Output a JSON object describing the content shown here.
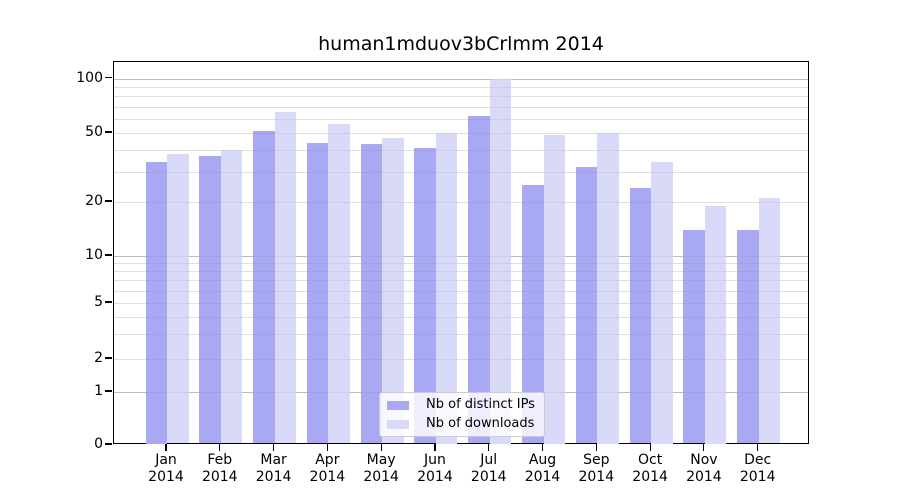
{
  "chart_data": {
    "type": "bar",
    "title": "human1mduov3bCrlmm 2014",
    "x_categories": [
      "Jan",
      "Feb",
      "Mar",
      "Apr",
      "May",
      "Jun",
      "Jul",
      "Aug",
      "Sep",
      "Oct",
      "Nov",
      "Dec"
    ],
    "x_year_label": "2014",
    "series": [
      {
        "name": "Nb of distinct IPs",
        "color": "#a9a9f3",
        "values": [
          34,
          37,
          51,
          44,
          43,
          41,
          62,
          25,
          32,
          24,
          14,
          14
        ]
      },
      {
        "name": "Nb of downloads",
        "color": "#d9d9f8",
        "values": [
          38,
          40,
          65,
          56,
          47,
          50,
          100,
          49,
          50,
          34,
          19,
          21
        ]
      }
    ],
    "yscale": "symlog",
    "yticks": [
      0,
      1,
      2,
      5,
      10,
      20,
      50,
      100
    ],
    "y_minor_gridlines": [
      2,
      3,
      4,
      5,
      6,
      7,
      8,
      9,
      20,
      30,
      40,
      50,
      60,
      70,
      80,
      90
    ],
    "y_major_gridlines": [
      1,
      10,
      100
    ],
    "ylim": [
      0,
      112
    ],
    "grid": true,
    "legend": {
      "position": "lower-center-inside",
      "labels": [
        "Nb of distinct IPs",
        "Nb of downloads"
      ]
    }
  },
  "colors": {
    "bar_distinct_ips": "#a9a9f3",
    "bar_downloads": "#d9d9f8",
    "grid_major": "#c6c6c6",
    "grid_minor": "#ebebeb",
    "spine": "#000000",
    "legend_border": "#cccccc",
    "background": "#ffffff"
  }
}
